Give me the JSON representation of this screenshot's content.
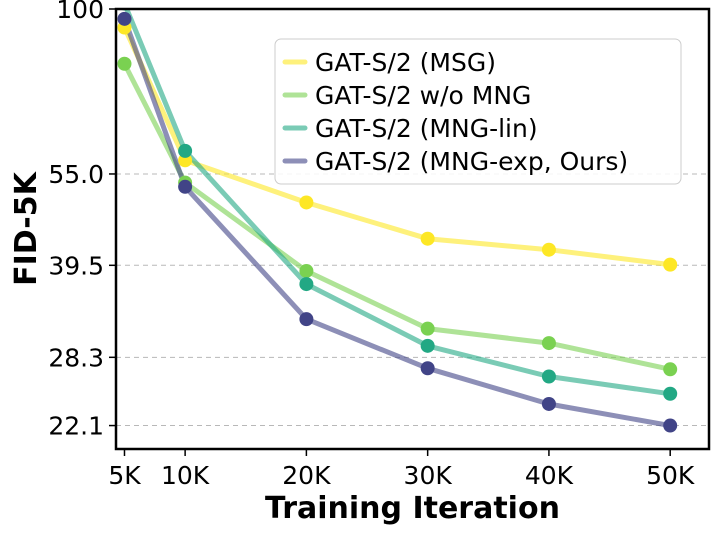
{
  "chart_data": {
    "type": "line",
    "title": "",
    "xlabel": "Training Iteration",
    "ylabel": "FID-5K",
    "y_scale": "log",
    "x": [
      5,
      10,
      20,
      30,
      40,
      50
    ],
    "x_tick_labels": [
      "5K",
      "10K",
      "20K",
      "30K",
      "40K",
      "50K"
    ],
    "y_ticks": [
      100,
      55.0,
      39.5,
      28.3,
      22.1
    ],
    "y_tick_labels": [
      "100",
      "55.0",
      "39.5",
      "28.3",
      "22.1"
    ],
    "xlim": [
      4.3,
      53.2
    ],
    "ylim": [
      20.3,
      100
    ],
    "grid": "horizontal dashed",
    "legend_position": "top-right",
    "series": [
      {
        "name": "GAT-S/2 (MSG)",
        "color": "#fde725",
        "values": [
          93.5,
          57.8,
          49.6,
          43.5,
          41.8,
          39.6
        ]
      },
      {
        "name": "GAT-S/2 w/o MNG",
        "color": "#7ad151",
        "values": [
          82.0,
          53.3,
          38.7,
          31.4,
          29.8,
          27.1
        ]
      },
      {
        "name": "GAT-S/2 (MNG-lin)",
        "color": "#22a884",
        "values": [
          102.0,
          59.8,
          36.9,
          29.5,
          26.4,
          24.8
        ]
      },
      {
        "name": "GAT-S/2 (MNG-exp, Ours)",
        "color": "#414487",
        "values": [
          96.5,
          52.5,
          32.5,
          27.2,
          23.9,
          22.1
        ]
      }
    ]
  }
}
